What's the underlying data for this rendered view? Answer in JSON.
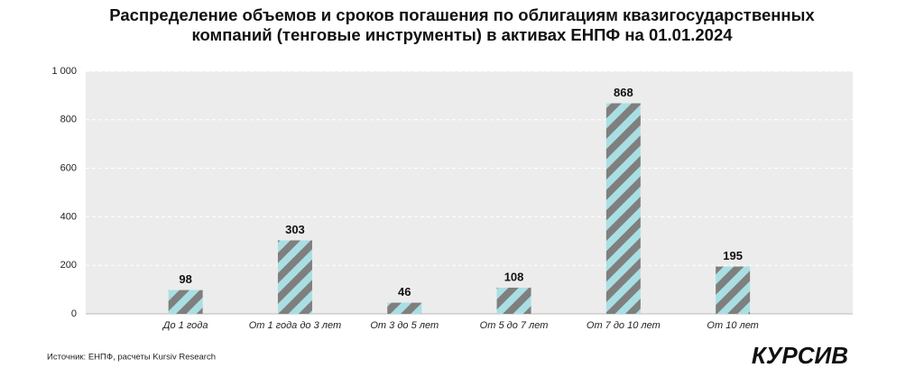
{
  "chart_data": {
    "type": "bar",
    "title": "Распределение объемов и сроков погашения по облигациям квазигосударственных компаний (тенговые инструменты) в активах ЕНПФ на 01.01.2024",
    "categories": [
      "До 1 года",
      "От 1 года до 3 лет",
      "От 3 до 5 лет",
      "От 5 до 7 лет",
      "От 7 до 10 лет",
      "От 10 лет"
    ],
    "values": [
      98,
      303,
      46,
      108,
      868,
      195
    ],
    "colors": [
      "#7f7f7f",
      "#a9dfe3"
    ],
    "ylim": [
      0,
      1000
    ],
    "yticks": [
      0,
      200,
      400,
      600,
      800,
      {
        "value": 1000,
        "label": "1 000"
      }
    ],
    "grid": true,
    "source": "Источник: ЕНПФ, расчеты Kursiv Research",
    "logo": "КУРСИВ"
  }
}
